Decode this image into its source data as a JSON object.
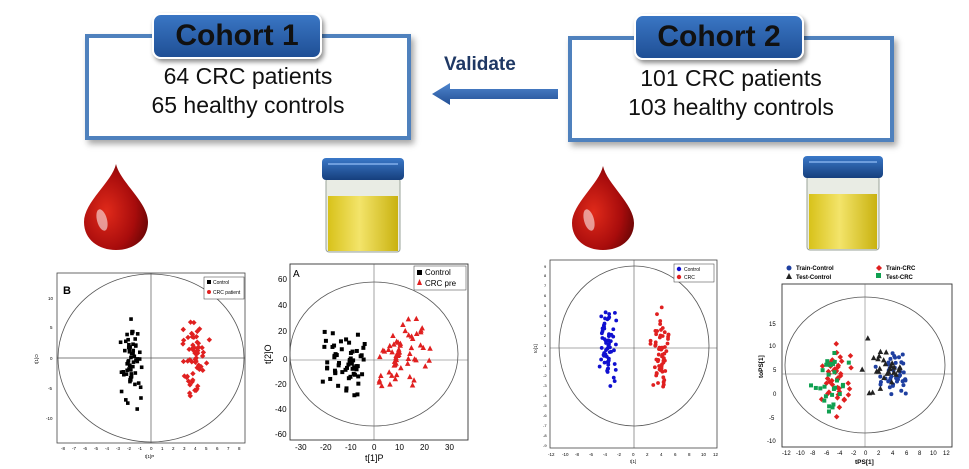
{
  "cohort1": {
    "title": "Cohort 1",
    "line1": "64 CRC patients",
    "line2": "65 healthy controls"
  },
  "cohort2": {
    "title": "Cohort 2",
    "line1": "101 CRC patients",
    "line2": "103 healthy controls"
  },
  "validate": {
    "label": "Validate"
  },
  "colors": {
    "box_border": "#4f81bd",
    "title_fill": "#2d64b0",
    "arrow": "#2f5fa6",
    "blood": "#b21010",
    "urine": "#e2cf2a",
    "cap": "#1e56a0",
    "red_marker": "#e02020",
    "black_marker": "#000000",
    "blue_marker": "#1010d0",
    "green_marker": "#10a050"
  },
  "icons": [
    "blood-drop-icon",
    "urine-cup-icon"
  ],
  "plots": {
    "plot1": {
      "panel": "B",
      "legend": [
        "Control",
        "CRC patient"
      ],
      "xticks": [
        "-8",
        "-7",
        "-6",
        "-5",
        "-4",
        "-3",
        "-2",
        "-1",
        "0",
        "1",
        "2",
        "3",
        "4",
        "5",
        "6",
        "7",
        "8"
      ],
      "yticks": [
        "10",
        "5",
        "0",
        "-5",
        "-10"
      ],
      "xlabel": "t[1]P",
      "ylabel": "t[1]O"
    },
    "plot2": {
      "panel": "A",
      "legend": [
        "Control",
        "CRC pre"
      ],
      "xticks": [
        "-30",
        "-20",
        "-10",
        "0",
        "10",
        "20",
        "30"
      ],
      "yticks": [
        "60",
        "40",
        "20",
        "0",
        "-20",
        "-40",
        "-60"
      ],
      "xlabel": "t[1]P",
      "ylabel": "t[2]O"
    },
    "plot3": {
      "legend": [
        "Control",
        "CRC"
      ],
      "xticks": [
        "-12",
        "-10",
        "-8",
        "-6",
        "-4",
        "-2",
        "0",
        "2",
        "4",
        "6",
        "8",
        "10",
        "12"
      ],
      "yticks": [
        "9",
        "8",
        "7",
        "6",
        "5",
        "4",
        "3",
        "2",
        "1",
        "0",
        "-1",
        "-2",
        "-3",
        "-4",
        "-5",
        "-6",
        "-7",
        "-8",
        "-9"
      ],
      "xlabel": "t[1]",
      "ylabel": "to[1]"
    },
    "plot4": {
      "legend": [
        "Train-Control",
        "Train-CRC",
        "Test-Control",
        "Test-CRC"
      ],
      "xticks": [
        "-12",
        "-10",
        "-8",
        "-6",
        "-4",
        "-2",
        "0",
        "2",
        "4",
        "6",
        "8",
        "10",
        "12"
      ],
      "yticks": [
        "15",
        "10",
        "5",
        "0",
        "-5",
        "-10"
      ],
      "xlabel": "tPS[1]",
      "ylabel": "toPS[1]"
    }
  }
}
